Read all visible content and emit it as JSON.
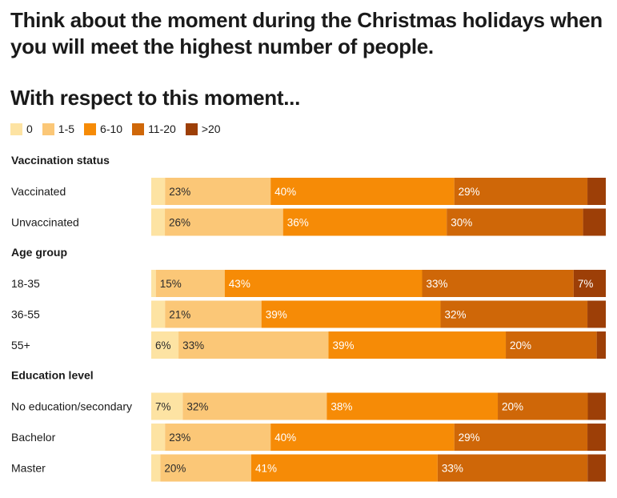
{
  "header": {
    "title": "Think about the moment during the Christmas holidays when you will meet the highest number of people.",
    "subtitle": "With respect to this moment..."
  },
  "colors": [
    "#fde3a3",
    "#fbc777",
    "#f68b06",
    "#cf6708",
    "#9d3f07"
  ],
  "chart_data": {
    "type": "bar",
    "orientation": "horizontal",
    "stacked": true,
    "percent": true,
    "legend": {
      "placement": "top-left",
      "entries": [
        "0",
        "1-5",
        "6-10",
        "11-20",
        ">20"
      ]
    },
    "groups": [
      {
        "name": "Vaccination status",
        "rows": [
          {
            "label": "Vaccinated",
            "values": [
              3,
              23,
              40,
              29,
              4
            ],
            "labels": [
              "",
              "23%",
              "40%",
              "29%",
              ""
            ]
          },
          {
            "label": "Unvaccinated",
            "values": [
              3,
              26,
              36,
              30,
              5
            ],
            "labels": [
              "",
              "26%",
              "36%",
              "30%",
              ""
            ]
          }
        ]
      },
      {
        "name": "Age group",
        "rows": [
          {
            "label": "18-35",
            "values": [
              1,
              15,
              43,
              33,
              7
            ],
            "labels": [
              "",
              "15%",
              "43%",
              "33%",
              "7%"
            ]
          },
          {
            "label": "36-55",
            "values": [
              3,
              21,
              39,
              32,
              4
            ],
            "labels": [
              "",
              "21%",
              "39%",
              "32%",
              ""
            ]
          },
          {
            "label": "55+",
            "values": [
              6,
              33,
              39,
              20,
              2
            ],
            "labels": [
              "6%",
              "33%",
              "39%",
              "20%",
              ""
            ]
          }
        ]
      },
      {
        "name": "Education level",
        "rows": [
          {
            "label": "No education/secondary",
            "values": [
              7,
              32,
              38,
              20,
              4
            ],
            "labels": [
              "7%",
              "32%",
              "38%",
              "20%",
              ""
            ]
          },
          {
            "label": "Bachelor",
            "values": [
              3,
              23,
              40,
              29,
              4
            ],
            "labels": [
              "",
              "23%",
              "40%",
              "29%",
              ""
            ]
          },
          {
            "label": "Master",
            "values": [
              2,
              20,
              41,
              33,
              4
            ],
            "labels": [
              "",
              "20%",
              "41%",
              "33%",
              ""
            ]
          }
        ]
      }
    ]
  }
}
